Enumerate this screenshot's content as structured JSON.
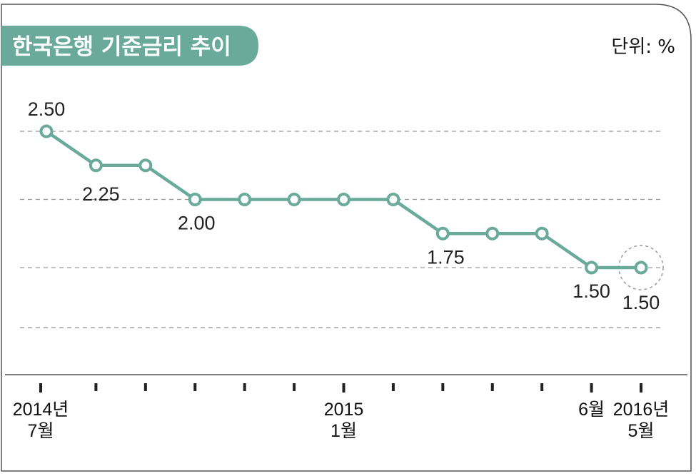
{
  "chart_data": {
    "type": "line",
    "title": "한국은행 기준금리 추이",
    "unit": "단위: %",
    "ylim": [
      1.0,
      2.7
    ],
    "grid_values": [
      2.5,
      2.0,
      1.5,
      1.06
    ],
    "series": [
      {
        "color": "#6aaa9b",
        "points": [
          {
            "x": 0,
            "y": 2.5,
            "label": "2.50"
          },
          {
            "x": 1,
            "y": 2.25,
            "label": "2.25"
          },
          {
            "x": 2,
            "y": 2.25
          },
          {
            "x": 3,
            "y": 2.0,
            "label": "2.00"
          },
          {
            "x": 4,
            "y": 2.0
          },
          {
            "x": 5,
            "y": 2.0
          },
          {
            "x": 6,
            "y": 2.0
          },
          {
            "x": 7,
            "y": 2.0
          },
          {
            "x": 8,
            "y": 1.75,
            "label": "1.75"
          },
          {
            "x": 9,
            "y": 1.75
          },
          {
            "x": 10,
            "y": 1.75
          },
          {
            "x": 11,
            "y": 1.5,
            "label": "1.50"
          },
          {
            "x": 12,
            "y": 1.5,
            "label": "1.50",
            "highlight": true
          }
        ]
      }
    ],
    "ticks": [
      0,
      1,
      2,
      3,
      4,
      5,
      6,
      7,
      8,
      9,
      10,
      11,
      12
    ],
    "tick_labels": [
      {
        "x": 0,
        "lines": [
          "2014년",
          "7월"
        ]
      },
      {
        "x": 6,
        "lines": [
          "2015",
          "1월"
        ]
      },
      {
        "x": 11,
        "lines": [
          "6월"
        ]
      },
      {
        "x": 12,
        "lines": [
          "2016년",
          "5월"
        ]
      }
    ],
    "colors": {
      "accent": "#6aaa9b",
      "grid": "#9a9a9a",
      "frame": "#555555",
      "text": "#222222"
    }
  }
}
